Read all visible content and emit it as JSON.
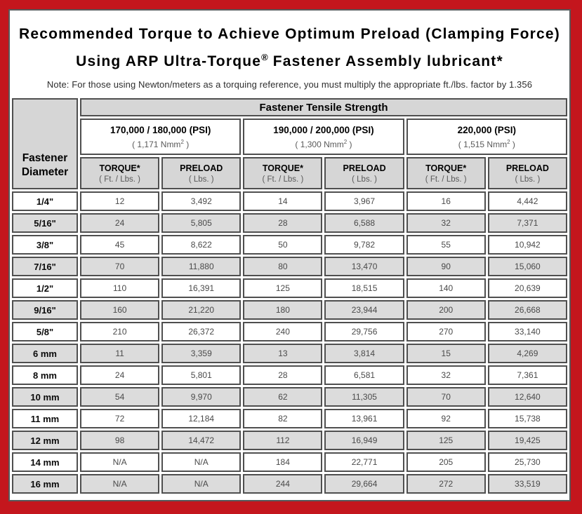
{
  "title": {
    "line1": "Recommended Torque to Achieve Optimum Preload (Clamping Force)",
    "line2_pre": "Using ARP Ultra-Torque",
    "line2_sup": "®",
    "line2_post": " Fastener Assembly lubricant*",
    "note": "Note: For those using Newton/meters as a torquing reference, you must multiply the appropriate ft./lbs. factor by 1.356"
  },
  "colors": {
    "frame_red": "#c4161d",
    "header_gray": "#d6d6d6",
    "row_shade_gray": "#dcdcdc",
    "border_gray": "#4f4f4f"
  },
  "chart_data": {
    "type": "table",
    "title": "Recommended Torque to Achieve Optimum Preload (Clamping Force) Using ARP Ultra-Torque® Fastener Assembly lubricant*",
    "note": "Note: For those using Newton/meters as a torquing reference, you must multiply the appropriate ft./lbs. factor by 1.356",
    "corner_header": "Fastener Diameter",
    "span_header": "Fastener Tensile Strength",
    "column_groups": [
      {
        "psi": "170,000 / 180,000 (PSI)",
        "nmm_pre": "( 1,171 Nmm",
        "nmm_sup": "2",
        "nmm_post": " )"
      },
      {
        "psi": "190,000 / 200,000 (PSI)",
        "nmm_pre": "( 1,300 Nmm",
        "nmm_sup": "2",
        "nmm_post": " )"
      },
      {
        "psi": "220,000 (PSI)",
        "nmm_pre": "( 1,515 Nmm",
        "nmm_sup": "2",
        "nmm_post": " )"
      }
    ],
    "sub_columns": {
      "torque_label": "TORQUE*",
      "torque_unit": "( Ft. / Lbs. )",
      "preload_label": "PRELOAD",
      "preload_unit": "( Lbs. )"
    },
    "rows": [
      {
        "diameter": "1/4\"",
        "values": [
          "12",
          "3,492",
          "14",
          "3,967",
          "16",
          "4,442"
        ]
      },
      {
        "diameter": "5/16\"",
        "values": [
          "24",
          "5,805",
          "28",
          "6,588",
          "32",
          "7,371"
        ]
      },
      {
        "diameter": "3/8\"",
        "values": [
          "45",
          "8,622",
          "50",
          "9,782",
          "55",
          "10,942"
        ]
      },
      {
        "diameter": "7/16\"",
        "values": [
          "70",
          "11,880",
          "80",
          "13,470",
          "90",
          "15,060"
        ]
      },
      {
        "diameter": "1/2\"",
        "values": [
          "110",
          "16,391",
          "125",
          "18,515",
          "140",
          "20,639"
        ]
      },
      {
        "diameter": "9/16\"",
        "values": [
          "160",
          "21,220",
          "180",
          "23,944",
          "200",
          "26,668"
        ]
      },
      {
        "diameter": "5/8\"",
        "values": [
          "210",
          "26,372",
          "240",
          "29,756",
          "270",
          "33,140"
        ]
      },
      {
        "diameter": "6 mm",
        "values": [
          "11",
          "3,359",
          "13",
          "3,814",
          "15",
          "4,269"
        ]
      },
      {
        "diameter": "8 mm",
        "values": [
          "24",
          "5,801",
          "28",
          "6,581",
          "32",
          "7,361"
        ]
      },
      {
        "diameter": "10 mm",
        "values": [
          "54",
          "9,970",
          "62",
          "11,305",
          "70",
          "12,640"
        ]
      },
      {
        "diameter": "11 mm",
        "values": [
          "72",
          "12,184",
          "82",
          "13,961",
          "92",
          "15,738"
        ]
      },
      {
        "diameter": "12 mm",
        "values": [
          "98",
          "14,472",
          "112",
          "16,949",
          "125",
          "19,425"
        ]
      },
      {
        "diameter": "14 mm",
        "values": [
          "N/A",
          "N/A",
          "184",
          "22,771",
          "205",
          "25,730"
        ]
      },
      {
        "diameter": "16 mm",
        "values": [
          "N/A",
          "N/A",
          "244",
          "29,664",
          "272",
          "33,519"
        ]
      }
    ]
  }
}
